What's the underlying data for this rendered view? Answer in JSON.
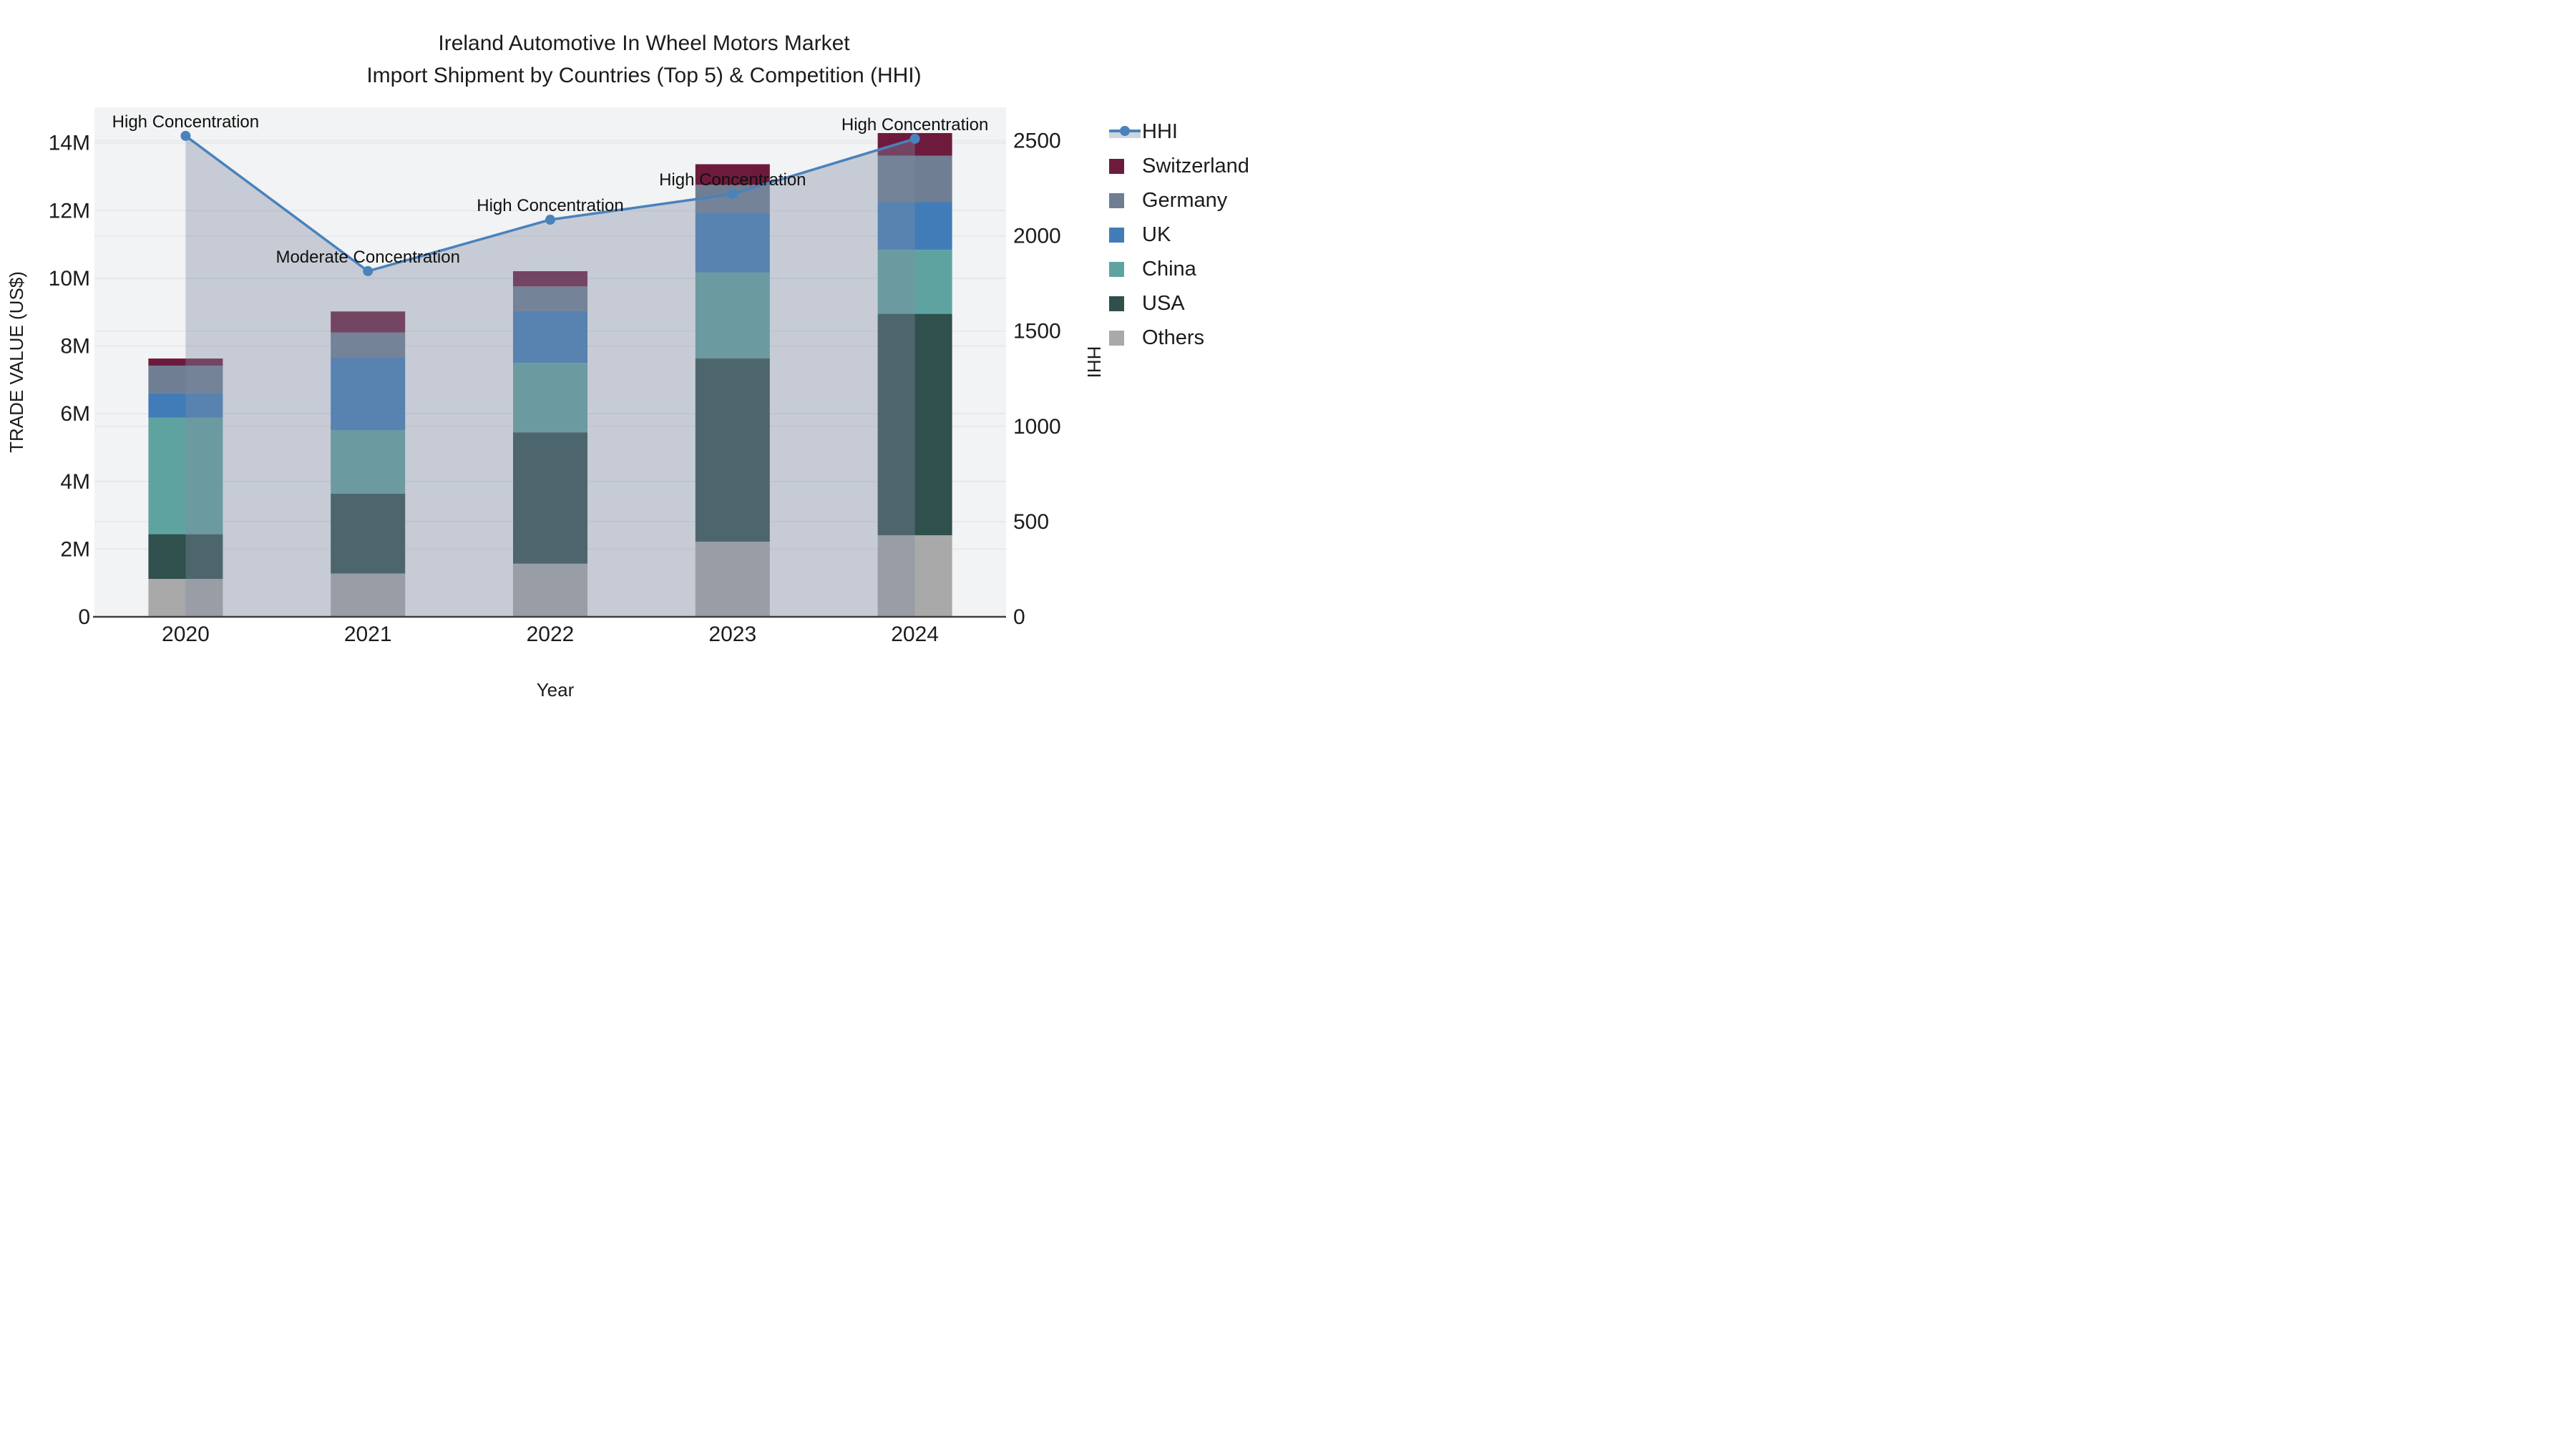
{
  "title": {
    "line1": "Ireland Automotive In Wheel Motors Market",
    "line2": "Import Shipment by Countries (Top 5) & Competition (HHI)"
  },
  "colors": {
    "plot_background": "#F2F3F4",
    "gridline": "#E4E6E9",
    "axis_line": "#3F3F3F",
    "text": "#1c1c1c",
    "hhi_line": "#4A82BC",
    "hhi_area_fill": "rgba(127,140,162,0.38)"
  },
  "chart_data": {
    "type": "bar+line (stacked bars with secondary-axis line and shaded area)",
    "unit": "Trade value in US$ millions",
    "categories": [
      "2020",
      "2021",
      "2022",
      "2023",
      "2024"
    ],
    "series": [
      {
        "name": "Others",
        "color": "#A9A9A9",
        "values": [
          1.12,
          1.28,
          1.57,
          2.22,
          2.41
        ]
      },
      {
        "name": "USA",
        "color": "#2F504D",
        "values": [
          1.32,
          2.36,
          3.88,
          5.41,
          6.54
        ]
      },
      {
        "name": "China",
        "color": "#5FA3A0",
        "values": [
          3.44,
          1.87,
          2.05,
          2.54,
          1.89
        ]
      },
      {
        "name": "UK",
        "color": "#427CB8",
        "values": [
          0.73,
          2.16,
          1.54,
          1.77,
          1.41
        ]
      },
      {
        "name": "Germany",
        "color": "#6F7E92",
        "values": [
          0.81,
          0.73,
          0.72,
          0.82,
          1.37
        ]
      },
      {
        "name": "Switzerland",
        "color": "#6E1A3D",
        "values": [
          0.21,
          0.62,
          0.45,
          0.61,
          0.67
        ]
      }
    ],
    "line": {
      "name": "HHI",
      "color": "#4A82BC",
      "area_fill": "rgba(127,140,162,0.38)",
      "values": [
        2525,
        1815,
        2085,
        2220,
        2510
      ]
    },
    "annotations": [
      "High Concentration",
      "Moderate Concentration",
      "High Concentration",
      "High Concentration",
      "High Concentration"
    ],
    "axis_left": {
      "title": "TRADE VALUE (US$)",
      "tick_labels": [
        "0",
        "2M",
        "4M",
        "6M",
        "8M",
        "10M",
        "12M",
        "14M"
      ],
      "tick_values": [
        0,
        2,
        4,
        6,
        8,
        10,
        12,
        14
      ],
      "range": [
        0,
        15.05
      ]
    },
    "axis_right": {
      "title": "HHI",
      "tick_labels": [
        "0",
        "500",
        "1000",
        "1500",
        "2000",
        "2500"
      ],
      "tick_values": [
        0,
        500,
        1000,
        1500,
        2000,
        2500
      ],
      "range": [
        0,
        2675
      ]
    },
    "axis_x": {
      "title": "Year"
    },
    "grid": true,
    "legend_position": "right"
  },
  "legend": {
    "items": [
      {
        "label": "HHI",
        "type": "line-marker-area",
        "color": "#4A82BC"
      },
      {
        "label": "Switzerland",
        "type": "swatch",
        "color": "#6E1A3D"
      },
      {
        "label": "Germany",
        "type": "swatch",
        "color": "#6F7E92"
      },
      {
        "label": "UK",
        "type": "swatch",
        "color": "#427CB8"
      },
      {
        "label": "China",
        "type": "swatch",
        "color": "#5FA3A0"
      },
      {
        "label": "USA",
        "type": "swatch",
        "color": "#2F504D"
      },
      {
        "label": "Others",
        "type": "swatch",
        "color": "#A9A9A9"
      }
    ]
  }
}
